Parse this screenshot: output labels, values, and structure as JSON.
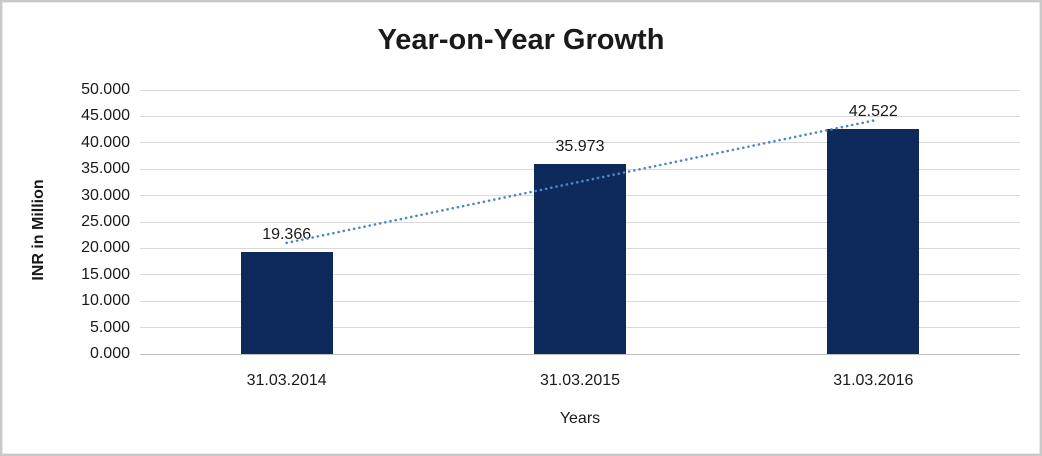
{
  "chart_data": {
    "type": "bar",
    "title": "Year-on-Year Growth",
    "categories": [
      "31.03.2014",
      "31.03.2015",
      "31.03.2016"
    ],
    "values": [
      19.366,
      35.973,
      42.522
    ],
    "data_labels": [
      "19.366",
      "35.973",
      "42.522"
    ],
    "xlabel": "Years",
    "ylabel": "INR in Million",
    "ylim": [
      0,
      50
    ],
    "ytick_step": 5,
    "ytick_labels": [
      "0.000",
      "5.000",
      "10.000",
      "15.000",
      "20.000",
      "25.000",
      "30.000",
      "35.000",
      "40.000",
      "45.000",
      "50.000"
    ],
    "grid": true,
    "legend": "none",
    "bar_color": "#0e2a5c",
    "trendline": {
      "type": "linear",
      "style": "dotted",
      "color": "#4e86c8"
    },
    "gridline_color": "#d9d9d9",
    "axis_line_color": "#bfbfbf",
    "text_color": "#1a1a1a"
  }
}
